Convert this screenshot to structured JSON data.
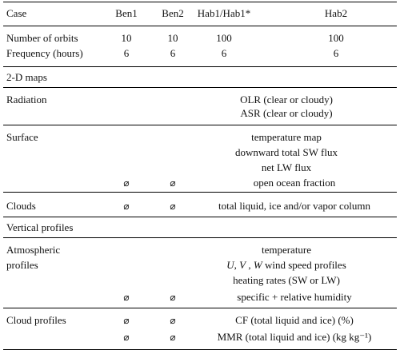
{
  "header": {
    "case": "Case",
    "ben1": "Ben1",
    "ben2": "Ben2",
    "hab1": "Hab1/Hab1*",
    "hab2": "Hab2"
  },
  "orbits": {
    "label": "Number of orbits",
    "ben1": "10",
    "ben2": "10",
    "hab1": "100",
    "hab2": "100"
  },
  "frequency": {
    "label": "Frequency (hours)",
    "ben1": "6",
    "ben2": "6",
    "hab1": "6",
    "hab2": "6"
  },
  "maps_section": "2-D maps",
  "radiation": {
    "label": "Radiation",
    "line1": "OLR (clear or cloudy)",
    "line2": "ASR (clear or cloudy)"
  },
  "surface": {
    "label": "Surface",
    "line1": "temperature map",
    "line2": "downward total SW flux",
    "line3": "net LW flux",
    "line4": "open ocean fraction",
    "null1": "⌀",
    "null2": "⌀"
  },
  "clouds": {
    "label": "Clouds",
    "null1": "⌀",
    "null2": "⌀",
    "text": "total liquid, ice and/or vapor column"
  },
  "profiles_section": "Vertical profiles",
  "atmospheric": {
    "label1": "Atmospheric",
    "label2": "profiles",
    "line1": "temperature",
    "line2_u": "U",
    "line2_v": "V",
    "line2_w": "W",
    "line2_tail": "wind speed profiles",
    "line3": "heating rates (SW or LW)",
    "line4": "specific + relative humidity",
    "null1": "⌀",
    "null2": "⌀"
  },
  "cloud_profiles": {
    "label": "Cloud profiles",
    "null1": "⌀",
    "null2": "⌀",
    "cf": "CF (total liquid and ice) (%)",
    "null3": "⌀",
    "null4": "⌀",
    "mmr": "MMR (total liquid and ice) (kg kg⁻¹)"
  }
}
